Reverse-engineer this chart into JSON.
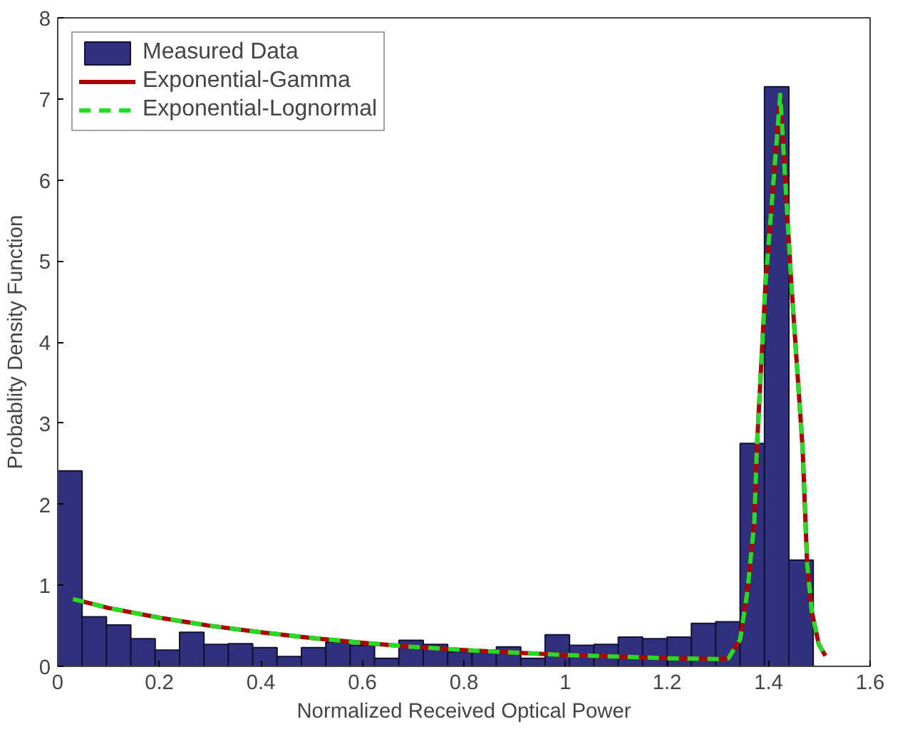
{
  "chart_data": {
    "type": "histogram",
    "xlabel": "Normalized Received Optical Power",
    "ylabel": "Probablity Density Function",
    "bins": [
      0,
      0.048,
      0.096,
      0.144,
      0.192,
      0.24,
      0.288,
      0.336,
      0.384,
      0.432,
      0.48,
      0.528,
      0.576,
      0.624,
      0.672,
      0.72,
      0.768,
      0.816,
      0.864,
      0.912,
      0.96,
      1.008,
      1.056,
      1.104,
      1.152,
      1.2,
      1.248,
      1.296,
      1.344,
      1.392,
      1.44,
      1.488
    ],
    "series": [
      {
        "name": "Measured Data",
        "color": "#31307f",
        "values": [
          2.41,
          0.61,
          0.51,
          0.34,
          0.2,
          0.42,
          0.27,
          0.28,
          0.23,
          0.12,
          0.23,
          0.3,
          0.26,
          0.1,
          0.32,
          0.27,
          0.18,
          0.2,
          0.24,
          0.1,
          0.39,
          0.26,
          0.27,
          0.36,
          0.34,
          0.36,
          0.53,
          0.55,
          2.75,
          7.15,
          1.31
        ]
      },
      {
        "name": "Exponential-Gamma",
        "type": "line",
        "color": "#b00000",
        "line_style": "solid",
        "x": [
          0.03,
          0.1,
          0.2,
          0.3,
          0.4,
          0.5,
          0.6,
          0.7,
          0.8,
          0.9,
          1.0,
          1.1,
          1.2,
          1.3,
          1.321,
          1.344,
          1.358,
          1.372,
          1.377,
          1.394,
          1.423,
          1.445,
          1.467,
          1.476,
          1.485,
          1.499,
          1.512
        ],
        "values": [
          0.83,
          0.72,
          0.6,
          0.5,
          0.42,
          0.35,
          0.29,
          0.24,
          0.2,
          0.17,
          0.14,
          0.12,
          0.1,
          0.09,
          0.1,
          0.33,
          0.91,
          1.78,
          2.7,
          4.72,
          7.05,
          4.7,
          2.7,
          1.26,
          0.68,
          0.27,
          0.13
        ]
      },
      {
        "name": "Exponential-Lognormal",
        "type": "line",
        "color": "#22dd22",
        "line_style": "dashed",
        "x": [
          0.03,
          0.1,
          0.2,
          0.3,
          0.4,
          0.5,
          0.6,
          0.7,
          0.8,
          0.9,
          1.0,
          1.1,
          1.2,
          1.3,
          1.321,
          1.344,
          1.358,
          1.372,
          1.377,
          1.394,
          1.423,
          1.445,
          1.467,
          1.476,
          1.485,
          1.499,
          1.512
        ],
        "values": [
          0.83,
          0.72,
          0.6,
          0.5,
          0.42,
          0.35,
          0.29,
          0.24,
          0.2,
          0.17,
          0.14,
          0.12,
          0.1,
          0.09,
          0.1,
          0.33,
          0.91,
          1.78,
          2.7,
          4.72,
          7.05,
          4.7,
          2.7,
          1.26,
          0.68,
          0.27,
          0.13
        ]
      }
    ],
    "xlim": [
      0,
      1.6
    ],
    "xticks": [
      0,
      0.2,
      0.4,
      0.6,
      0.8,
      1,
      1.2,
      1.4,
      1.6
    ],
    "ylim": [
      0,
      8
    ],
    "yticks": [
      0,
      1,
      2,
      3,
      4,
      5,
      6,
      7,
      8
    ],
    "grid": false,
    "legend": "top left"
  }
}
